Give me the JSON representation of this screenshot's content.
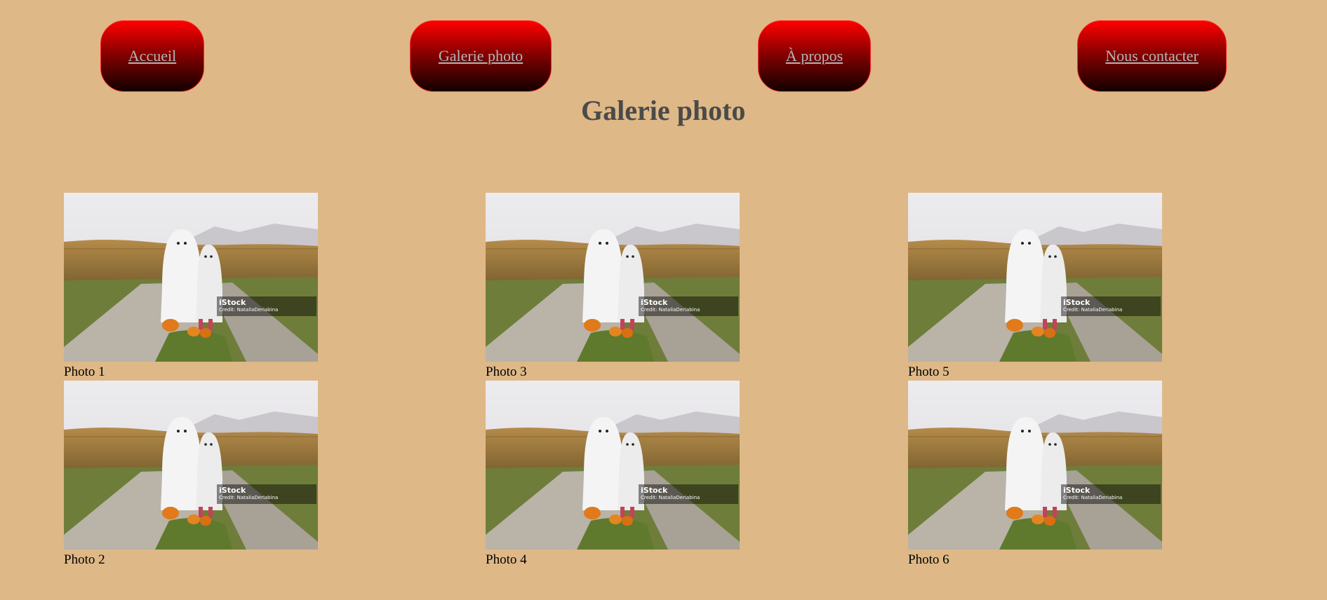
{
  "nav": {
    "items": [
      {
        "label": "Accueil"
      },
      {
        "label": "Galerie photo"
      },
      {
        "label": "À propos"
      },
      {
        "label": "Nous contacter"
      }
    ]
  },
  "page": {
    "title": "Galerie photo"
  },
  "gallery": {
    "photos": [
      {
        "caption": "Photo 1",
        "watermark": "iStock",
        "credit": "Credit: NataliaDeriabina"
      },
      {
        "caption": "Photo 2",
        "watermark": "iStock",
        "credit": "Credit: NataliaDeriabina"
      },
      {
        "caption": "Photo 3",
        "watermark": "iStock",
        "credit": "Credit: NataliaDeriabina"
      },
      {
        "caption": "Photo 4",
        "watermark": "iStock",
        "credit": "Credit: NataliaDeriabina"
      },
      {
        "caption": "Photo 5",
        "watermark": "iStock",
        "credit": "Credit: NataliaDeriabina"
      },
      {
        "caption": "Photo 6",
        "watermark": "iStock",
        "credit": "Credit: NataliaDeriabina"
      }
    ]
  },
  "colors": {
    "background": "#deb887",
    "button_top": "#ff0000",
    "button_bottom": "#120000",
    "title": "#4a4a4a"
  }
}
